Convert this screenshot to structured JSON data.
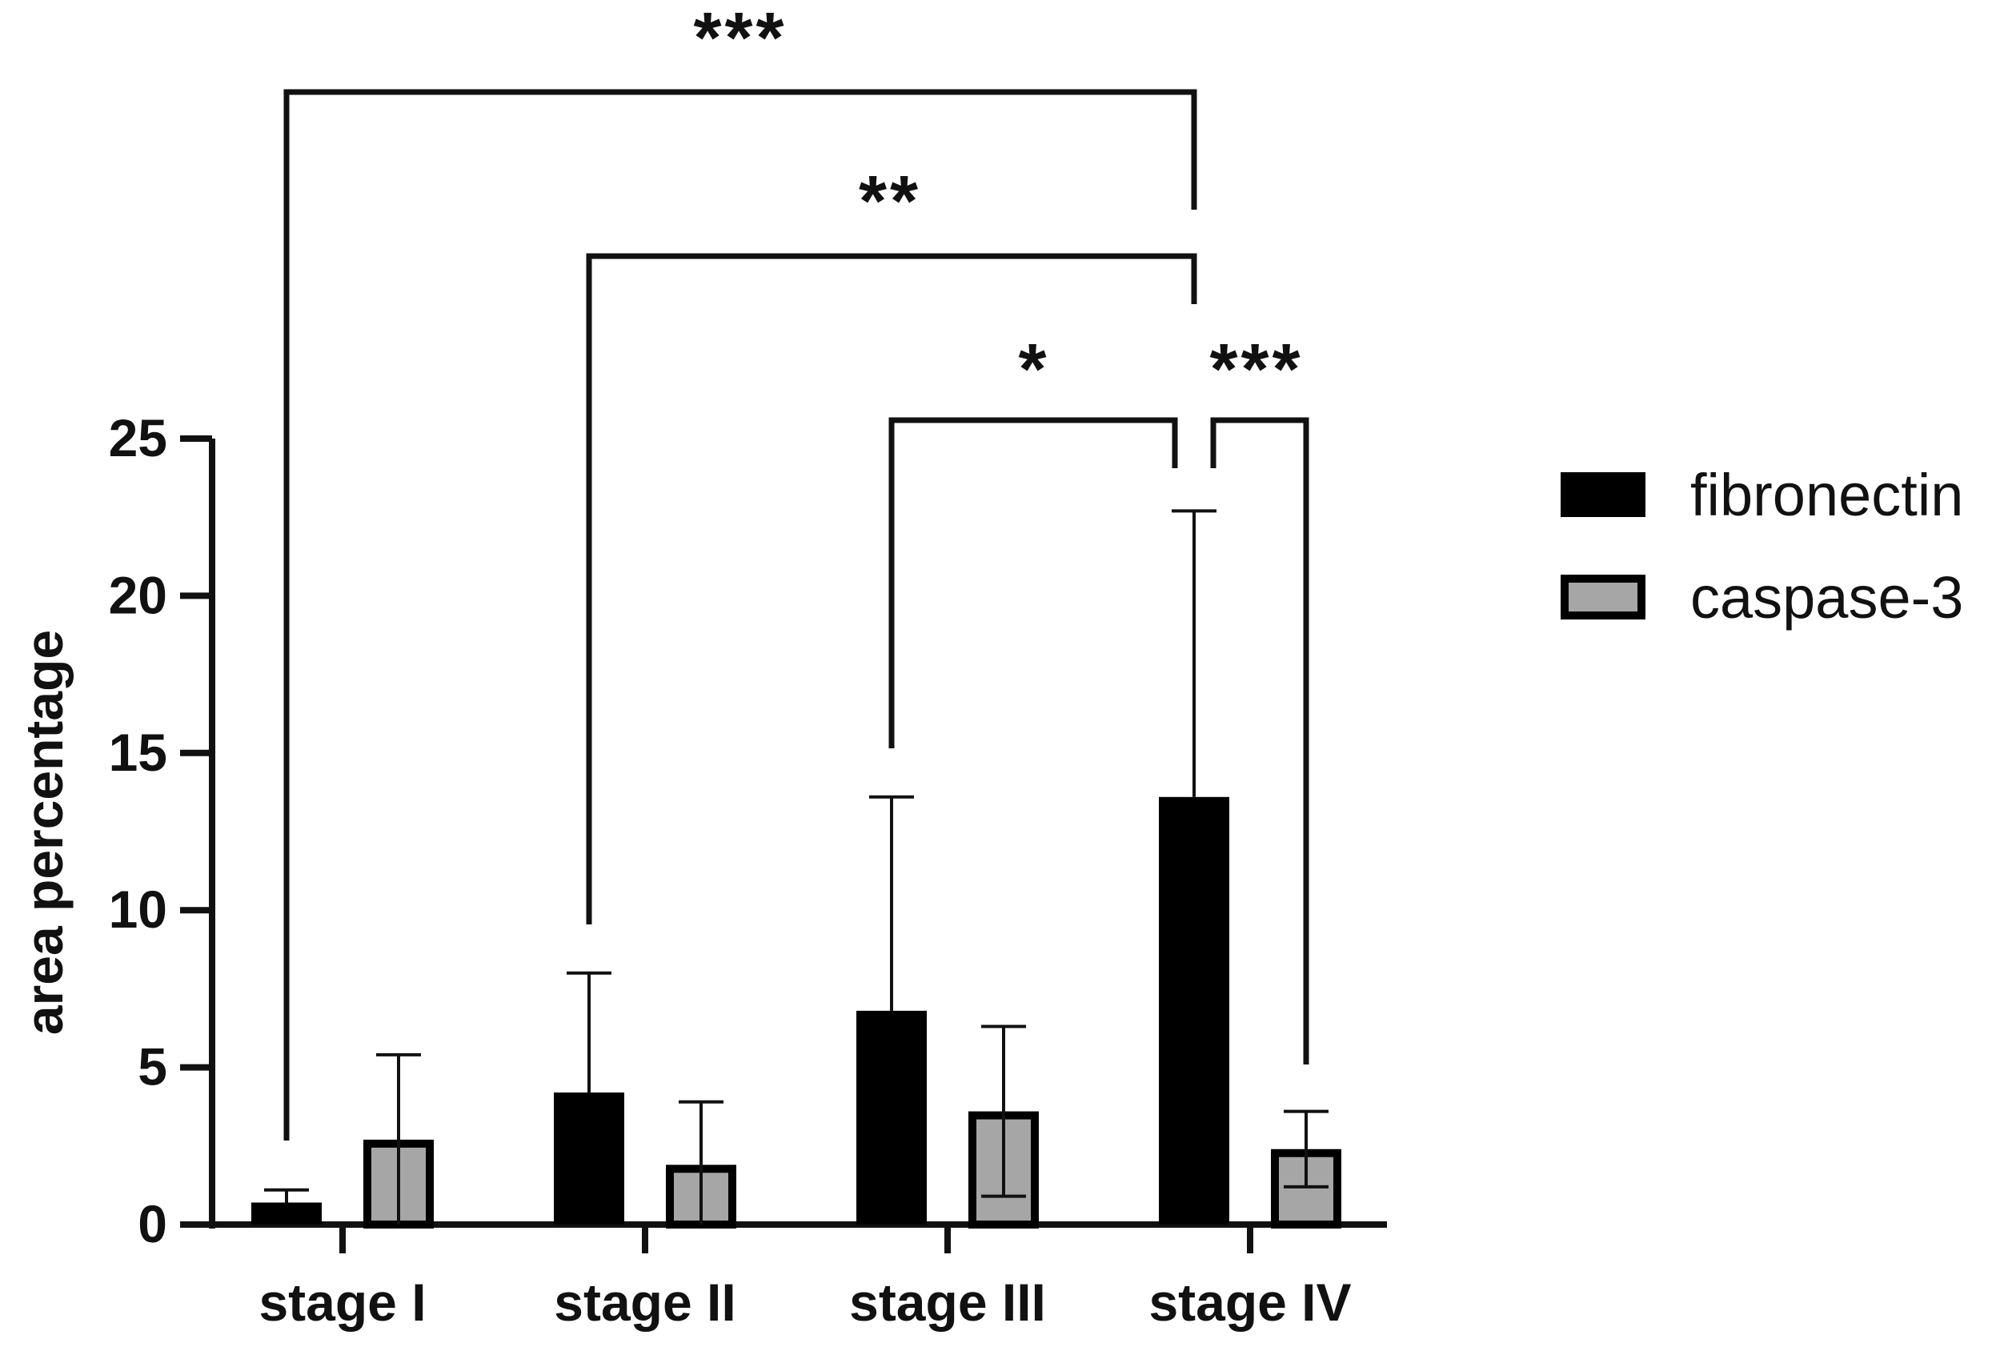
{
  "chart_data": {
    "type": "bar",
    "categories": [
      "stage I",
      "stage II",
      "stage III",
      "stage IV"
    ],
    "series": [
      {
        "name": "fibronectin",
        "color": "#000000",
        "values": [
          0.7,
          4.2,
          6.8,
          13.6
        ],
        "error": [
          0.4,
          3.8,
          6.8,
          9.1
        ]
      },
      {
        "name": "caspase-3",
        "color": "#a6a6a6",
        "values": [
          2.7,
          1.9,
          3.6,
          2.4
        ],
        "error": [
          2.7,
          2.0,
          2.7,
          1.2
        ]
      }
    ],
    "ylabel": "area percentage",
    "xlabel": "",
    "ylim": [
      0,
      25
    ],
    "yticks": [
      "0",
      "5",
      "10",
      "15",
      "20",
      "25"
    ],
    "legend_position": "right",
    "significance": [
      {
        "label": "***",
        "from": "stage I fibronectin",
        "to": "stage IV fibronectin"
      },
      {
        "label": "**",
        "from": "stage II fibronectin",
        "to": "stage IV fibronectin"
      },
      {
        "label": "*",
        "from": "stage III fibronectin",
        "to": "stage IV fibronectin"
      },
      {
        "label": "***",
        "from": "stage IV fibronectin",
        "to": "stage IV caspase-3"
      }
    ]
  }
}
